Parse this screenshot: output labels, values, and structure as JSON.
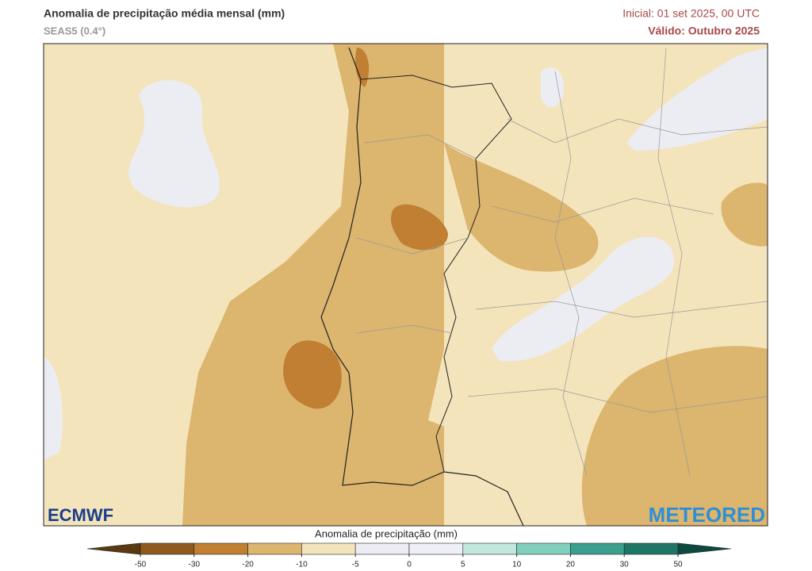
{
  "header": {
    "title": "Anomalia de precipitação média mensal (mm)",
    "subtitle": "SEAS5 (0.4°)",
    "initial": "Inicial: 01 set 2025, 00 UTC",
    "valid": "Válido: Outubro 2025"
  },
  "colorbar": {
    "title": "Anomalia de precipitação (mm)",
    "ticks": [
      -50,
      -30,
      -20,
      -10,
      -5,
      0,
      5,
      10,
      20,
      30,
      50
    ],
    "colors": [
      "#8f5a1c",
      "#c07f33",
      "#dcb56e",
      "#f4e4bc",
      "#ececf3",
      "#eff0f5",
      "#c2e8de",
      "#80cfbd",
      "#3b9f8e",
      "#1e7667"
    ],
    "extend_colors": [
      "#5a3810",
      "#0c4a40"
    ]
  },
  "logos": {
    "left": "ECMWF",
    "right": "METEORED"
  }
}
